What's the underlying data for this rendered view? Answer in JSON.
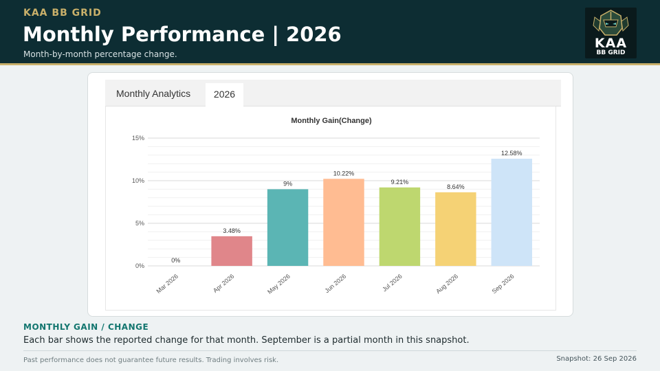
{
  "header": {
    "brand": "KAA BB GRID",
    "title": "Monthly Performance | 2026",
    "subtitle": "Month-by-month percentage change."
  },
  "logo": {
    "line1": "KAA",
    "line2": "BB GRID"
  },
  "panel": {
    "tab_label": "Monthly Analytics",
    "tab_year": "2026"
  },
  "chart_data": {
    "type": "bar",
    "title": "Monthly Gain(Change)",
    "categories": [
      "Mar 2026",
      "Apr 2026",
      "May 2026",
      "Jun 2026",
      "Jul 2026",
      "Aug 2026",
      "Sep 2026"
    ],
    "values": [
      0,
      3.48,
      9,
      10.22,
      9.21,
      8.64,
      12.58
    ],
    "data_labels": [
      "0%",
      "3.48%",
      "9%",
      "10.22%",
      "9.21%",
      "8.64%",
      "12.58%"
    ],
    "colors": [
      "#e2e2e2",
      "#e0868a",
      "#5bb5b4",
      "#ffbc92",
      "#bed76f",
      "#f5d275",
      "#cee4f8"
    ],
    "yticks": [
      "0%",
      "5%",
      "10%",
      "15%"
    ],
    "ylim": [
      0,
      15
    ],
    "grid": true,
    "legend": "none"
  },
  "note": {
    "label": "MONTHLY GAIN / CHANGE",
    "text": "Each bar shows the reported change for that month. September is a partial month in this snapshot."
  },
  "footer": {
    "disclaimer": "Past performance does not guarantee future results. Trading involves risk.",
    "snapshot": "Snapshot: 26 Sep 2026"
  },
  "colors": {
    "header_bg": "#0d2d33",
    "accent_gold": "#c9b06a",
    "accent_teal": "#13766f"
  }
}
